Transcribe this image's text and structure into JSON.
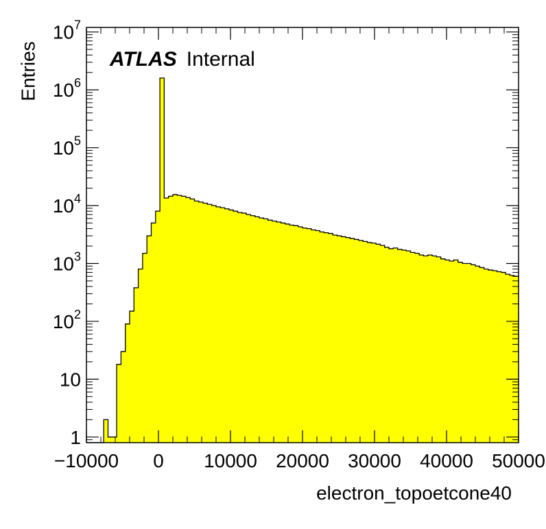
{
  "chart_data": {
    "type": "bar",
    "style": "filled-histogram",
    "fill_color": "#ffff00",
    "line_color": "#000000",
    "xlabel": "electron_topoetcone40",
    "ylabel": "Entries",
    "annotation": {
      "bold": "ATLAS",
      "text": "Internal"
    },
    "xlim": [
      -10000,
      50000
    ],
    "ylim": [
      0.8,
      12000000
    ],
    "y_scale": "log",
    "x_ticks": [
      {
        "value": -10000,
        "label": "−10000"
      },
      {
        "value": 0,
        "label": "0"
      },
      {
        "value": 10000,
        "label": "10000"
      },
      {
        "value": 20000,
        "label": "20000"
      },
      {
        "value": 30000,
        "label": "30000"
      },
      {
        "value": 40000,
        "label": "40000"
      },
      {
        "value": 50000,
        "label": "50000"
      }
    ],
    "y_ticks": [
      {
        "value": 1,
        "base": "1",
        "exp": ""
      },
      {
        "value": 10,
        "base": "10",
        "exp": ""
      },
      {
        "value": 100,
        "base": "10",
        "exp": "2"
      },
      {
        "value": 1000,
        "base": "10",
        "exp": "3"
      },
      {
        "value": 10000,
        "base": "10",
        "exp": "4"
      },
      {
        "value": 100000,
        "base": "10",
        "exp": "5"
      },
      {
        "value": 1000000,
        "base": "10",
        "exp": "6"
      },
      {
        "value": 10000000,
        "base": "10",
        "exp": "7"
      }
    ],
    "bin_width": 600,
    "bins_start": -10000,
    "values": [
      0,
      0,
      0,
      0,
      2,
      1,
      1,
      18,
      30,
      90,
      150,
      380,
      800,
      1500,
      3000,
      5000,
      8000,
      1600000,
      13500,
      14500,
      15500,
      15000,
      14500,
      13800,
      13000,
      12000,
      11500,
      11000,
      10500,
      10000,
      9500,
      9200,
      8800,
      8400,
      8000,
      7600,
      7400,
      7000,
      6700,
      6400,
      6100,
      5900,
      5600,
      5400,
      5200,
      5000,
      4800,
      4600,
      4500,
      4300,
      4100,
      4000,
      3800,
      3700,
      3500,
      3400,
      3300,
      3100,
      3000,
      2900,
      2800,
      2700,
      2600,
      2500,
      2400,
      2300,
      2250,
      2150,
      2050,
      1900,
      1800,
      1850,
      1750,
      1700,
      1650,
      1550,
      1500,
      1400,
      1350,
      1400,
      1350,
      1300,
      1200,
      1150,
      1100,
      1150,
      1050,
      1000,
      1000,
      950,
      900,
      850,
      800,
      770,
      750,
      720,
      700,
      650,
      620,
      600
    ],
    "grid": false,
    "legend": "none"
  }
}
